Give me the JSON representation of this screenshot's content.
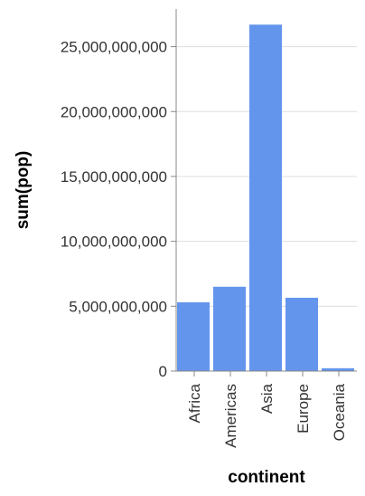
{
  "chart_data": {
    "type": "bar",
    "categories": [
      "Africa",
      "Americas",
      "Asia",
      "Europe",
      "Oceania"
    ],
    "values": [
      5300000000,
      6500000000,
      26700000000,
      5650000000,
      220000000
    ],
    "xlabel": "continent",
    "ylabel": "sum(pop)",
    "ylim": [
      0,
      27900000000
    ],
    "yticks": [
      0,
      5000000000,
      10000000000,
      15000000000,
      20000000000,
      25000000000
    ],
    "ytick_labels": [
      "0",
      "5,000,000,000",
      "10,000,000,000",
      "15,000,000,000",
      "20,000,000,000",
      "25,000,000,000"
    ],
    "grid": true,
    "bar_color": "#6495ed"
  }
}
